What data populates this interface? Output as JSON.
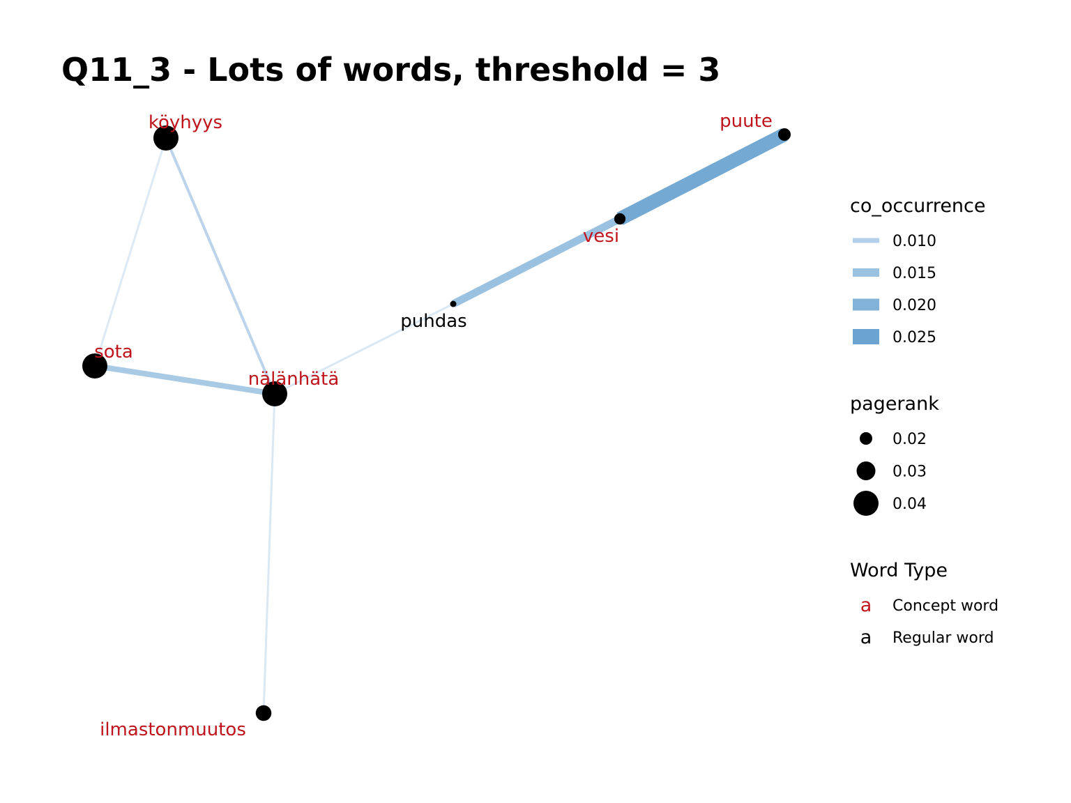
{
  "title": "Q11_3 - Lots of words, threshold = 3",
  "colors": {
    "concept": "#c0141c",
    "regular": "#000000",
    "node": "#000000",
    "edge_scale": [
      "#c6dbef",
      "#a6c6e3",
      "#8bb5db",
      "#6ba4d1"
    ]
  },
  "nodes": [
    {
      "id": "koyhyys",
      "label": "köyhyys",
      "type": "concept",
      "pagerank": 0.04
    },
    {
      "id": "puute",
      "label": "puute",
      "type": "concept",
      "pagerank": 0.02
    },
    {
      "id": "vesi",
      "label": "vesi",
      "type": "concept",
      "pagerank": 0.018
    },
    {
      "id": "puhdas",
      "label": "puhdas",
      "type": "regular",
      "pagerank": 0.01
    },
    {
      "id": "sota",
      "label": "sota",
      "type": "concept",
      "pagerank": 0.04
    },
    {
      "id": "nalanhata",
      "label": "nälänhätä",
      "type": "concept",
      "pagerank": 0.04
    },
    {
      "id": "ilmastonmuutos",
      "label": "ilmastonmuutos",
      "type": "concept",
      "pagerank": 0.025
    }
  ],
  "edges": [
    {
      "from": "koyhyys",
      "to": "sota",
      "co_occurrence": 0.006
    },
    {
      "from": "koyhyys",
      "to": "nalanhata",
      "co_occurrence": 0.009
    },
    {
      "from": "sota",
      "to": "nalanhata",
      "co_occurrence": 0.013
    },
    {
      "from": "nalanhata",
      "to": "puhdas",
      "co_occurrence": 0.007
    },
    {
      "from": "nalanhata",
      "to": "ilmastonmuutos",
      "co_occurrence": 0.007
    },
    {
      "from": "puhdas",
      "to": "vesi",
      "co_occurrence": 0.016
    },
    {
      "from": "vesi",
      "to": "puute",
      "co_occurrence": 0.025
    }
  ],
  "legend": {
    "co_occurrence": {
      "title": "co_occurrence",
      "items": [
        {
          "label": "0.010",
          "value": 0.01
        },
        {
          "label": "0.015",
          "value": 0.015
        },
        {
          "label": "0.020",
          "value": 0.02
        },
        {
          "label": "0.025",
          "value": 0.025
        }
      ]
    },
    "pagerank": {
      "title": "pagerank",
      "items": [
        {
          "label": "0.02",
          "value": 0.02
        },
        {
          "label": "0.03",
          "value": 0.03
        },
        {
          "label": "0.04",
          "value": 0.04
        }
      ]
    },
    "word_type": {
      "title": "Word Type",
      "items": [
        {
          "key": "a",
          "label": "Concept word",
          "type": "concept"
        },
        {
          "key": "a",
          "label": "Regular word",
          "type": "regular"
        }
      ]
    }
  }
}
